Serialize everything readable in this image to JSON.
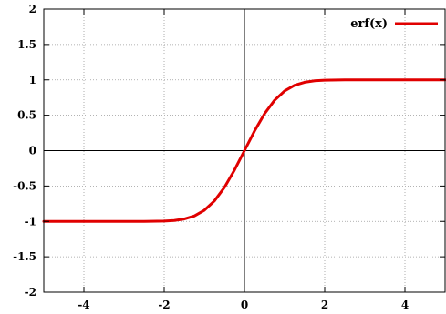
{
  "chart_data": {
    "type": "line",
    "title": "",
    "xlabel": "",
    "ylabel": "",
    "xlim": [
      -5,
      5
    ],
    "ylim": [
      -2,
      2
    ],
    "x_ticks": [
      -4,
      -2,
      0,
      2,
      4
    ],
    "x_tick_labels": [
      "-4",
      "-2",
      "0",
      "2",
      "4"
    ],
    "y_ticks": [
      -2,
      -1.5,
      -1,
      -0.5,
      0,
      0.5,
      1,
      1.5,
      2
    ],
    "y_tick_labels": [
      "-2",
      "-1.5",
      "-1",
      "-0.5",
      "0",
      "0.5",
      "1",
      "1.5",
      "2"
    ],
    "grid": true,
    "legend_position": "top-right",
    "series": [
      {
        "name": "erf(x)",
        "color": "#e00000",
        "x": [
          -5,
          -4,
          -3,
          -2.5,
          -2,
          -1.75,
          -1.5,
          -1.25,
          -1,
          -0.75,
          -0.5,
          -0.25,
          0,
          0.25,
          0.5,
          0.75,
          1,
          1.25,
          1.5,
          1.75,
          2,
          2.5,
          3,
          4,
          5
        ],
        "y": [
          -1,
          -1,
          -1,
          -0.9996,
          -0.9953,
          -0.9867,
          -0.9661,
          -0.9229,
          -0.8427,
          -0.7112,
          -0.5205,
          -0.2763,
          0,
          0.2763,
          0.5205,
          0.7112,
          0.8427,
          0.9229,
          0.9661,
          0.9867,
          0.9953,
          0.9996,
          1,
          1,
          1
        ]
      }
    ]
  }
}
